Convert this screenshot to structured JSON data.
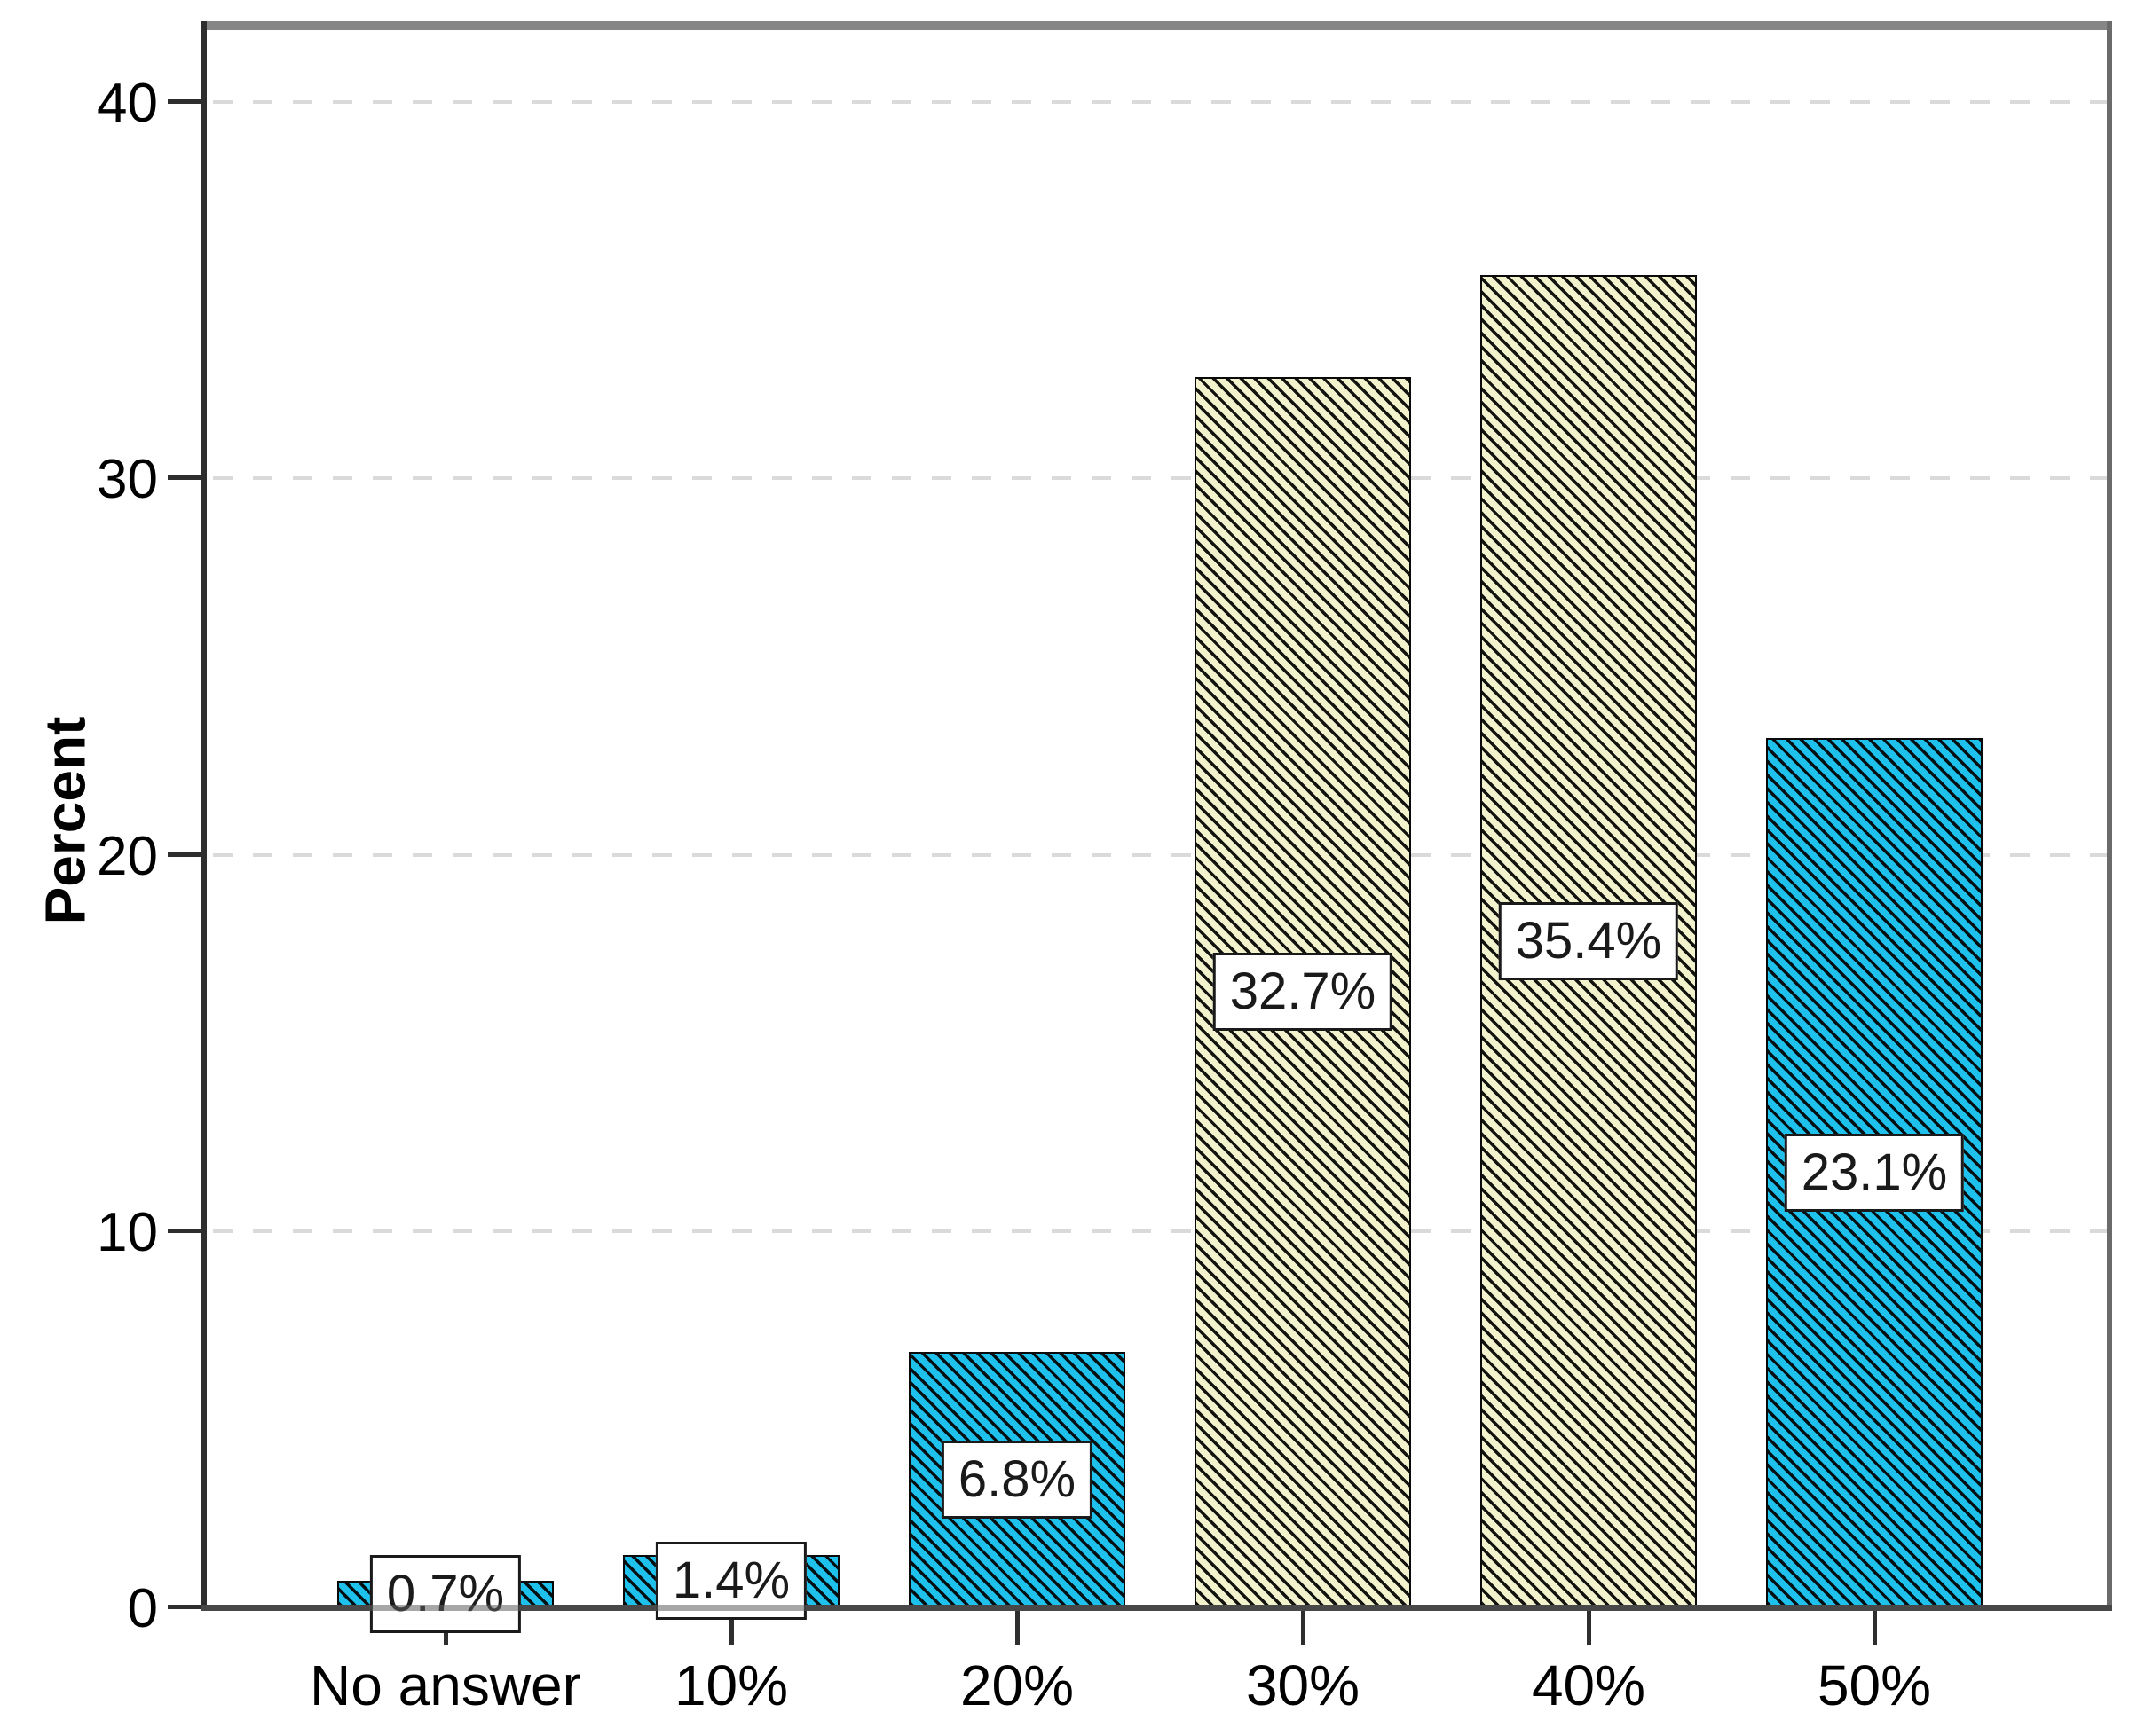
{
  "chart_data": {
    "type": "bar",
    "title": "",
    "ylabel": "Percent",
    "xlabel": "",
    "categories": [
      "No answer",
      "10%",
      "20%",
      "30%",
      "40%",
      "50%"
    ],
    "values": [
      0.7,
      1.4,
      6.8,
      32.7,
      35.4,
      23.1
    ],
    "bar_labels": [
      "0.7%",
      "1.4%",
      "6.8%",
      "32.7%",
      "35.4%",
      "23.1%"
    ],
    "bar_colors": [
      "#1ec0ec",
      "#1ec0ec",
      "#1ec0ec",
      "#f2f2cd",
      "#f2f2cd",
      "#1ec0ec"
    ],
    "hatch": "diagonal-down-black",
    "yticks": [
      0,
      10,
      20,
      30,
      40
    ],
    "ylim": [
      0,
      42.15
    ],
    "grid": "dashed-horizontal-light-gray",
    "legend": "none",
    "style": {
      "axis_color": "#2e2e2e",
      "frame_top_right_color": "#868686",
      "gridline_color": "#dadada",
      "bar_edge_color": "#0a0a0a",
      "label_box_border": "#1a1a1a",
      "label_box_fill": "#ffffff"
    }
  }
}
